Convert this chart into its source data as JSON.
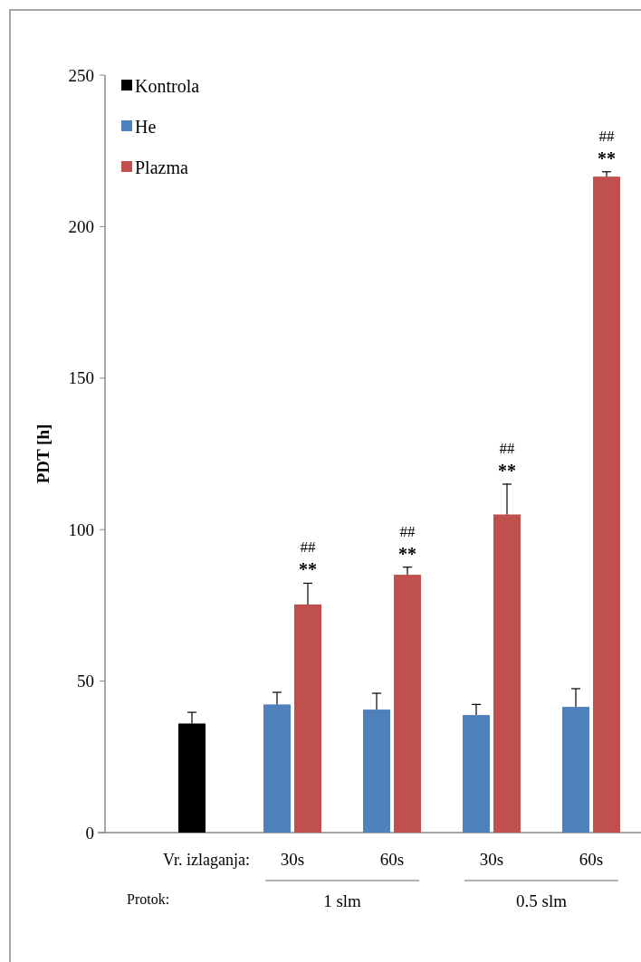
{
  "chart_data": {
    "type": "bar",
    "ylabel": "PDT [h]",
    "categories": [
      null,
      "30s",
      "60s",
      "30s",
      "60s"
    ],
    "series": [
      {
        "name": "Kontrola",
        "color": "#000000",
        "values": [
          36,
          null,
          null,
          null,
          null
        ],
        "errors": [
          3.7,
          null,
          null,
          null,
          null
        ]
      },
      {
        "name": "He",
        "color": "#4f81bd",
        "values": [
          null,
          42.3,
          40.6,
          38.8,
          41.5
        ],
        "errors": [
          null,
          4,
          5.4,
          3.5,
          6
        ]
      },
      {
        "name": "Plazma",
        "color": "#c0504d",
        "values": [
          null,
          75.3,
          85.1,
          105,
          216.5
        ],
        "errors": [
          null,
          7,
          2.5,
          10,
          1.6
        ]
      }
    ],
    "ylim": [
      0,
      250
    ],
    "yticks": [
      0,
      50,
      100,
      150,
      200,
      250
    ],
    "grid": false,
    "legend": "top left",
    "annotations": [
      "Vr. izlaganja:",
      "Protok:",
      "1 slm",
      "0.5 slm",
      "##",
      "**",
      "##",
      "**",
      "##",
      "**",
      "##",
      "**"
    ]
  }
}
